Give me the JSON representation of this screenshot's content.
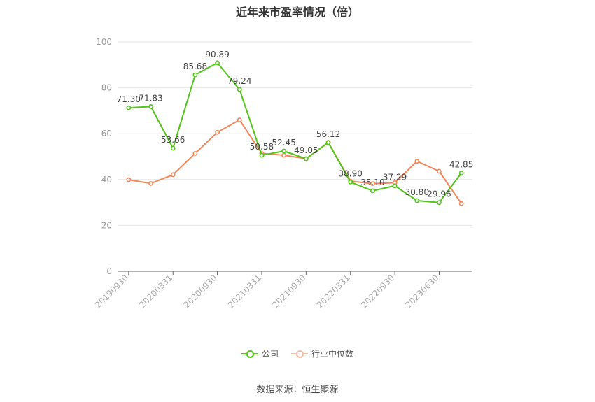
{
  "chart_data": {
    "type": "line",
    "title": "近年来市盈率情况（倍）",
    "x_tick_labels": [
      "20190930",
      "20200331",
      "20200930",
      "20210331",
      "20210930",
      "20220331",
      "20220930",
      "20230630"
    ],
    "ylim": [
      0,
      100
    ],
    "yticks": [
      0,
      20,
      40,
      60,
      80,
      100
    ],
    "grid": true,
    "legend_position": "bottom",
    "series": [
      {
        "name": "公司",
        "color": "#52c41a",
        "values": [
          71.3,
          71.83,
          53.66,
          85.68,
          90.89,
          79.24,
          50.58,
          52.45,
          49.05,
          56.12,
          38.9,
          35.1,
          37.29,
          30.8,
          29.96,
          42.85
        ],
        "labels": [
          "71.30",
          "71.83",
          "53.66",
          "85.68",
          "90.89",
          "79.24",
          "50.58",
          "52.45",
          "49.05",
          "56.12",
          "38.90",
          "35.10",
          "37.29",
          "30.80",
          "29.96",
          "42.85"
        ]
      },
      {
        "name": "行业中位数",
        "color": "#f0875a",
        "values": [
          39.9,
          38.3,
          42.1,
          51.4,
          60.6,
          66.0,
          51.4,
          50.6,
          49.1,
          56.2,
          39.3,
          38.2,
          38.6,
          48.0,
          43.6,
          29.5
        ]
      }
    ]
  },
  "source": "数据来源：恒生聚源"
}
